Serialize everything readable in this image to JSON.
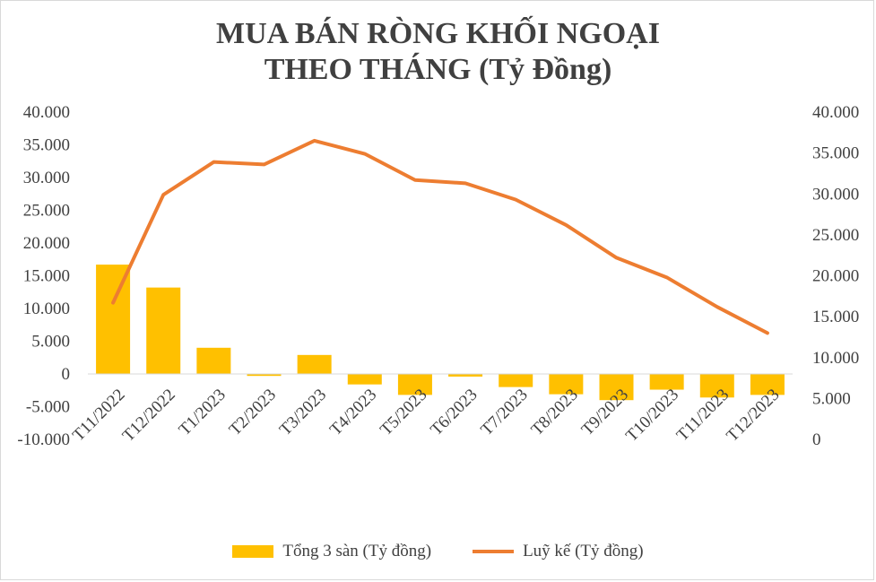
{
  "chart_data": {
    "type": "bar+line",
    "title_lines": [
      "MUA BÁN RÒNG KHỐI NGOẠI",
      "THEO THÁNG (Tỷ Đồng)"
    ],
    "categories": [
      "T11/2022",
      "T12/2022",
      "T1/2023",
      "T2/2023",
      "T3/2023",
      "T4/2023",
      "T5/2023",
      "T6/2023",
      "T7/2023",
      "T8/2023",
      "T9/2023",
      "T10/2023",
      "T11/2023",
      "T12/2023"
    ],
    "series": [
      {
        "name": "Tổng 3 sàn (Tỷ đồng)",
        "type": "bar",
        "axis": "left",
        "color": "#FFC000",
        "values": [
          16700,
          13200,
          4000,
          -300,
          2900,
          -1600,
          -3200,
          -400,
          -2000,
          -3100,
          -4000,
          -2400,
          -3600,
          -3200
        ]
      },
      {
        "name": "Luỹ kế (Tỷ đồng)",
        "type": "line",
        "axis": "right",
        "color": "#ED7D31",
        "values": [
          16700,
          29900,
          33900,
          33600,
          36500,
          34900,
          31700,
          31300,
          29300,
          26200,
          22200,
          19800,
          16200,
          13000
        ]
      }
    ],
    "y_left": {
      "min": -10000,
      "max": 40000,
      "step": 5000,
      "tick_labels": [
        "-10.000",
        "-5.000",
        "0",
        "5.000",
        "10.000",
        "15.000",
        "20.000",
        "25.000",
        "30.000",
        "35.000",
        "40.000"
      ]
    },
    "y_right": {
      "min": 0,
      "max": 40000,
      "step": 5000,
      "tick_labels": [
        "0",
        "5.000",
        "10.000",
        "15.000",
        "20.000",
        "25.000",
        "30.000",
        "35.000",
        "40.000"
      ]
    },
    "grid": false,
    "legend_position": "bottom"
  }
}
